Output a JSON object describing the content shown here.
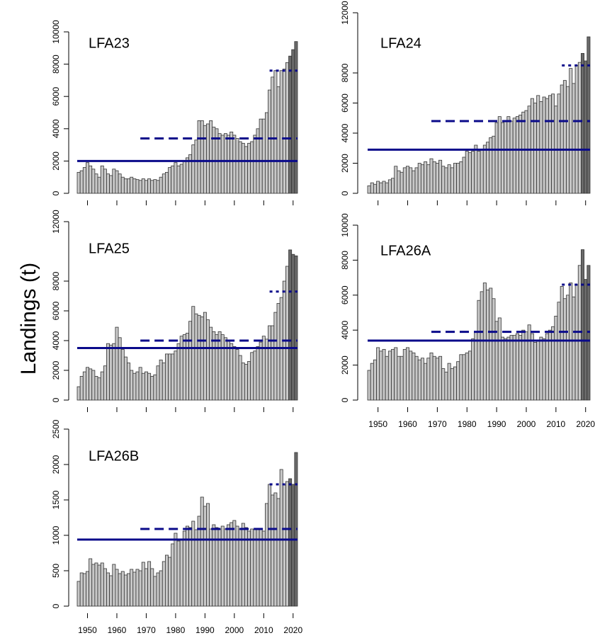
{
  "ylabel": "Landings (t)",
  "chart_data": [
    {
      "type": "bar",
      "title": "LFA23",
      "bar_color": "#c8c8c8",
      "recent_color": "#6a6a6a",
      "recent_from": 2019,
      "line_color": "#0a0a8a",
      "x": [
        1947,
        1948,
        1949,
        1950,
        1951,
        1952,
        1953,
        1954,
        1955,
        1956,
        1957,
        1958,
        1959,
        1960,
        1961,
        1962,
        1963,
        1964,
        1965,
        1966,
        1967,
        1968,
        1969,
        1970,
        1971,
        1972,
        1973,
        1974,
        1975,
        1976,
        1977,
        1978,
        1979,
        1980,
        1981,
        1982,
        1983,
        1984,
        1985,
        1986,
        1987,
        1988,
        1989,
        1990,
        1991,
        1992,
        1993,
        1994,
        1995,
        1996,
        1997,
        1998,
        1999,
        2000,
        2001,
        2002,
        2003,
        2004,
        2005,
        2006,
        2007,
        2008,
        2009,
        2010,
        2011,
        2012,
        2013,
        2014,
        2015,
        2016,
        2017,
        2018,
        2019,
        2020,
        2021
      ],
      "values": [
        1300,
        1400,
        1600,
        1900,
        1700,
        1500,
        1200,
        1000,
        1700,
        1500,
        1200,
        1100,
        1500,
        1400,
        1200,
        1000,
        900,
        900,
        1000,
        900,
        850,
        800,
        900,
        800,
        900,
        800,
        850,
        800,
        1000,
        1200,
        1300,
        1600,
        1700,
        1900,
        1700,
        1800,
        2000,
        2200,
        2400,
        3000,
        3300,
        4500,
        4500,
        4200,
        4300,
        4500,
        4100,
        4000,
        3700,
        3600,
        3700,
        3600,
        3800,
        3600,
        3400,
        3200,
        3100,
        2900,
        3100,
        3200,
        3600,
        4000,
        4600,
        4600,
        5000,
        6400,
        7200,
        7600,
        6600,
        7600,
        7700,
        8100,
        8500,
        8900,
        9400
      ],
      "lines": [
        {
          "value": 2000,
          "style": "solid",
          "from": 1946.5,
          "to": 2021.5
        },
        {
          "value": 3400,
          "style": "dashed",
          "from": 1968,
          "to": 2021.5
        },
        {
          "value": 7600,
          "style": "dotted",
          "from": 2012,
          "to": 2021.5
        }
      ],
      "xlim": [
        1946.5,
        2021.5
      ],
      "xticks": [
        1950,
        1960,
        1970,
        1980,
        1990,
        2000,
        2010,
        2020
      ],
      "show_xtick_labels": false,
      "ylim": [
        0,
        10000
      ],
      "yticks": [
        0,
        2000,
        4000,
        6000,
        8000,
        10000
      ]
    },
    {
      "type": "bar",
      "title": "LFA24",
      "bar_color": "#c8c8c8",
      "recent_color": "#6a6a6a",
      "recent_from": 2019,
      "line_color": "#0a0a8a",
      "x": [
        1947,
        1948,
        1949,
        1950,
        1951,
        1952,
        1953,
        1954,
        1955,
        1956,
        1957,
        1958,
        1959,
        1960,
        1961,
        1962,
        1963,
        1964,
        1965,
        1966,
        1967,
        1968,
        1969,
        1970,
        1971,
        1972,
        1973,
        1974,
        1975,
        1976,
        1977,
        1978,
        1979,
        1980,
        1981,
        1982,
        1983,
        1984,
        1985,
        1986,
        1987,
        1988,
        1989,
        1990,
        1991,
        1992,
        1993,
        1994,
        1995,
        1996,
        1997,
        1998,
        1999,
        2000,
        2001,
        2002,
        2003,
        2004,
        2005,
        2006,
        2007,
        2008,
        2009,
        2010,
        2011,
        2012,
        2013,
        2014,
        2015,
        2016,
        2017,
        2018,
        2019,
        2020,
        2021
      ],
      "values": [
        500,
        700,
        600,
        800,
        700,
        800,
        700,
        900,
        1000,
        1800,
        1500,
        1400,
        1700,
        1800,
        1700,
        1500,
        1700,
        2000,
        1900,
        2100,
        1900,
        2300,
        2100,
        2000,
        2200,
        1800,
        1700,
        1900,
        1700,
        2000,
        2000,
        2100,
        2400,
        2800,
        2700,
        2800,
        3200,
        2800,
        2900,
        3200,
        3400,
        3700,
        3800,
        4700,
        5100,
        4700,
        4800,
        5100,
        4800,
        5000,
        5100,
        5200,
        5400,
        5500,
        5800,
        6300,
        6000,
        6500,
        6100,
        6400,
        6300,
        6500,
        6600,
        5800,
        6600,
        7200,
        7500,
        7100,
        8300,
        7300,
        8500,
        8700,
        9300,
        8800,
        10400
      ],
      "lines": [
        {
          "value": 2900,
          "style": "solid",
          "from": 1946.5,
          "to": 2021.5
        },
        {
          "value": 4800,
          "style": "dashed",
          "from": 1968,
          "to": 2021.5
        },
        {
          "value": 8500,
          "style": "dotted",
          "from": 2012,
          "to": 2021.5
        }
      ],
      "xlim": [
        1946.5,
        2021.5
      ],
      "xticks": [
        1950,
        1960,
        1970,
        1980,
        1990,
        2000,
        2010,
        2020
      ],
      "show_xtick_labels": false,
      "ylim": [
        0,
        12000
      ],
      "yticks": [
        0,
        2000,
        4000,
        6000,
        8000,
        12000
      ]
    },
    {
      "type": "bar",
      "title": "LFA25",
      "bar_color": "#c8c8c8",
      "recent_color": "#6a6a6a",
      "recent_from": 2019,
      "line_color": "#0a0a8a",
      "x": [
        1947,
        1948,
        1949,
        1950,
        1951,
        1952,
        1953,
        1954,
        1955,
        1956,
        1957,
        1958,
        1959,
        1960,
        1961,
        1962,
        1963,
        1964,
        1965,
        1966,
        1967,
        1968,
        1969,
        1970,
        1971,
        1972,
        1973,
        1974,
        1975,
        1976,
        1977,
        1978,
        1979,
        1980,
        1981,
        1982,
        1983,
        1984,
        1985,
        1986,
        1987,
        1988,
        1989,
        1990,
        1991,
        1992,
        1993,
        1994,
        1995,
        1996,
        1997,
        1998,
        1999,
        2000,
        2001,
        2002,
        2003,
        2004,
        2005,
        2006,
        2007,
        2008,
        2009,
        2010,
        2011,
        2012,
        2013,
        2014,
        2015,
        2016,
        2017,
        2018,
        2019,
        2020,
        2021
      ],
      "values": [
        900,
        1600,
        1900,
        2200,
        2100,
        2000,
        1600,
        1500,
        1900,
        2300,
        3800,
        3700,
        3800,
        4900,
        4200,
        3400,
        2900,
        2500,
        2000,
        1800,
        1900,
        2200,
        1800,
        1900,
        1800,
        1600,
        1700,
        2300,
        2700,
        2500,
        3100,
        3100,
        3100,
        3300,
        3800,
        4300,
        4400,
        4500,
        5300,
        6300,
        5800,
        5700,
        5600,
        5900,
        5400,
        4900,
        4600,
        4400,
        4600,
        4400,
        4200,
        4000,
        3800,
        3600,
        3400,
        3000,
        2500,
        2400,
        2600,
        3200,
        3300,
        3600,
        3900,
        4300,
        4100,
        5000,
        5000,
        5900,
        6500,
        6900,
        8000,
        9000,
        10100,
        9800,
        9700
      ],
      "lines": [
        {
          "value": 3500,
          "style": "solid",
          "from": 1946.5,
          "to": 2021.5
        },
        {
          "value": 4000,
          "style": "dashed",
          "from": 1968,
          "to": 2021.5
        },
        {
          "value": 7300,
          "style": "dotted",
          "from": 2012,
          "to": 2021.5
        }
      ],
      "xlim": [
        1946.5,
        2021.5
      ],
      "xticks": [
        1950,
        1960,
        1970,
        1980,
        1990,
        2000,
        2010,
        2020
      ],
      "show_xtick_labels": false,
      "ylim": [
        0,
        12000
      ],
      "yticks": [
        0,
        2000,
        4000,
        6000,
        8000,
        12000
      ]
    },
    {
      "type": "bar",
      "title": "LFA26A",
      "bar_color": "#c8c8c8",
      "recent_color": "#6a6a6a",
      "recent_from": 2019,
      "line_color": "#0a0a8a",
      "x": [
        1947,
        1948,
        1949,
        1950,
        1951,
        1952,
        1953,
        1954,
        1955,
        1956,
        1957,
        1958,
        1959,
        1960,
        1961,
        1962,
        1963,
        1964,
        1965,
        1966,
        1967,
        1968,
        1969,
        1970,
        1971,
        1972,
        1973,
        1974,
        1975,
        1976,
        1977,
        1978,
        1979,
        1980,
        1981,
        1982,
        1983,
        1984,
        1985,
        1986,
        1987,
        1988,
        1989,
        1990,
        1991,
        1992,
        1993,
        1994,
        1995,
        1996,
        1997,
        1998,
        1999,
        2000,
        2001,
        2002,
        2003,
        2004,
        2005,
        2006,
        2007,
        2008,
        2009,
        2010,
        2011,
        2012,
        2013,
        2014,
        2015,
        2016,
        2017,
        2018,
        2019,
        2020,
        2021
      ],
      "values": [
        1700,
        2100,
        2300,
        3000,
        2800,
        2900,
        2500,
        2800,
        2900,
        3000,
        2500,
        2500,
        2900,
        3000,
        2800,
        2700,
        2500,
        2300,
        2400,
        2100,
        2400,
        2700,
        2500,
        2400,
        2500,
        1800,
        1600,
        2100,
        1800,
        1900,
        2200,
        2600,
        2600,
        2700,
        2800,
        3500,
        3900,
        5700,
        6200,
        6700,
        6300,
        6400,
        5800,
        4500,
        4700,
        3600,
        3500,
        3600,
        3700,
        3700,
        3800,
        3700,
        4000,
        3900,
        4300,
        3800,
        3300,
        3400,
        3600,
        3500,
        3800,
        4000,
        4200,
        4800,
        5600,
        6500,
        5800,
        6000,
        6700,
        5900,
        6600,
        7700,
        8600,
        6900,
        7700
      ],
      "lines": [
        {
          "value": 3400,
          "style": "solid",
          "from": 1946.5,
          "to": 2021.5
        },
        {
          "value": 3900,
          "style": "dashed",
          "from": 1968,
          "to": 2021.5
        },
        {
          "value": 6600,
          "style": "dotted",
          "from": 2012,
          "to": 2021.5
        }
      ],
      "xlim": [
        1946.5,
        2021.5
      ],
      "xticks": [
        1950,
        1960,
        1970,
        1980,
        1990,
        2000,
        2010,
        2020
      ],
      "show_xtick_labels": true,
      "ylim": [
        0,
        10000
      ],
      "yticks": [
        0,
        2000,
        4000,
        6000,
        8000,
        10000
      ]
    },
    {
      "type": "bar",
      "title": "LFA26B",
      "bar_color": "#c8c8c8",
      "recent_color": "#6a6a6a",
      "recent_from": 2019,
      "line_color": "#0a0a8a",
      "x": [
        1947,
        1948,
        1949,
        1950,
        1951,
        1952,
        1953,
        1954,
        1955,
        1956,
        1957,
        1958,
        1959,
        1960,
        1961,
        1962,
        1963,
        1964,
        1965,
        1966,
        1967,
        1968,
        1969,
        1970,
        1971,
        1972,
        1973,
        1974,
        1975,
        1976,
        1977,
        1978,
        1979,
        1980,
        1981,
        1982,
        1983,
        1984,
        1985,
        1986,
        1987,
        1988,
        1989,
        1990,
        1991,
        1992,
        1993,
        1994,
        1995,
        1996,
        1997,
        1998,
        1999,
        2000,
        2001,
        2002,
        2003,
        2004,
        2005,
        2006,
        2007,
        2008,
        2009,
        2010,
        2011,
        2012,
        2013,
        2014,
        2015,
        2016,
        2017,
        2018,
        2019,
        2020,
        2021
      ],
      "values": [
        350,
        470,
        460,
        490,
        670,
        590,
        610,
        580,
        610,
        530,
        470,
        430,
        590,
        520,
        460,
        490,
        440,
        460,
        520,
        480,
        520,
        500,
        620,
        530,
        630,
        530,
        420,
        470,
        500,
        630,
        720,
        690,
        880,
        1030,
        920,
        950,
        1060,
        1130,
        1110,
        1200,
        1080,
        1270,
        1540,
        1410,
        1450,
        1090,
        1150,
        1110,
        1090,
        1130,
        1090,
        1150,
        1180,
        1210,
        1130,
        1090,
        1170,
        1110,
        1060,
        1090,
        1080,
        1090,
        1100,
        1060,
        1450,
        1720,
        1570,
        1600,
        1520,
        1930,
        1710,
        1760,
        1800,
        1720,
        2170
      ],
      "lines": [
        {
          "value": 940,
          "style": "solid",
          "from": 1946.5,
          "to": 2021.5
        },
        {
          "value": 1090,
          "style": "dashed",
          "from": 1968,
          "to": 2021.5
        },
        {
          "value": 1720,
          "style": "dotted",
          "from": 2012,
          "to": 2021.5
        }
      ],
      "xlim": [
        1946.5,
        2021.5
      ],
      "xticks": [
        1950,
        1960,
        1970,
        1980,
        1990,
        2000,
        2010,
        2020
      ],
      "show_xtick_labels": true,
      "ylim": [
        0,
        2500
      ],
      "yticks": [
        0,
        500,
        1000,
        1500,
        2000,
        2500
      ]
    }
  ]
}
